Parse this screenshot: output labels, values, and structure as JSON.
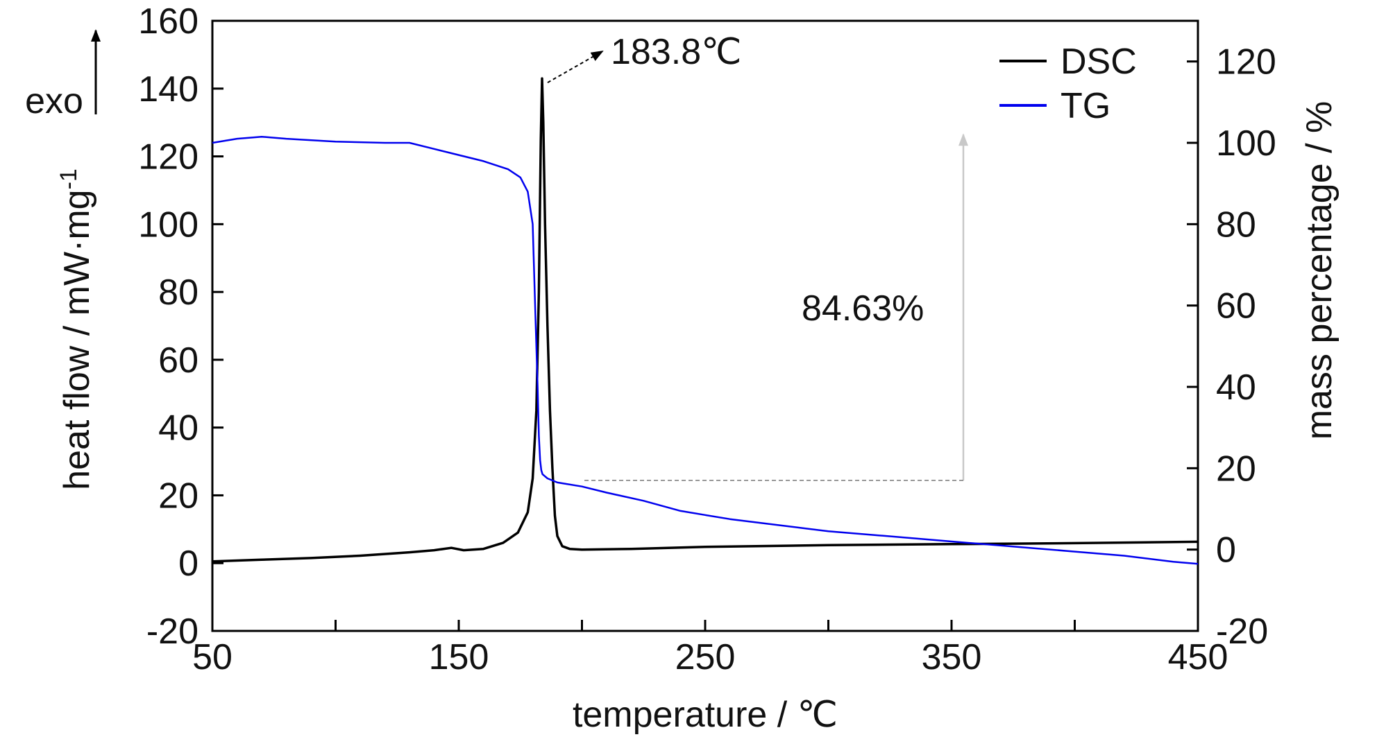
{
  "chart_data": {
    "type": "line",
    "title": "",
    "xlabel": "temperature / ℃",
    "ylabel_left": "heat flow / mW·mg",
    "ylabel_left_superscript": "-1",
    "ylabel_right": "mass percentage / %",
    "exo_label": "exo",
    "xlim": [
      50,
      450
    ],
    "ylim_left": [
      -20,
      160
    ],
    "ylim_right": [
      -20,
      130
    ],
    "x_ticks": [
      50,
      150,
      250,
      350,
      450
    ],
    "x_tick_labels": [
      "50",
      "150",
      "250",
      "350",
      "450"
    ],
    "x_minor_ticks": [
      100,
      200,
      300,
      400
    ],
    "y_left_ticks": [
      -20,
      0,
      20,
      40,
      60,
      80,
      100,
      120,
      140,
      160
    ],
    "y_left_tick_labels": [
      "-20",
      "0",
      "20",
      "40",
      "60",
      "80",
      "100",
      "120",
      "140",
      "160"
    ],
    "y_right_ticks": [
      -20,
      0,
      20,
      40,
      60,
      80,
      100,
      120
    ],
    "y_right_tick_labels": [
      "-20",
      "0",
      "20",
      "40",
      "60",
      "80",
      "100",
      "120"
    ],
    "grid": false,
    "legend_position": "top-right",
    "series": [
      {
        "name": "DSC",
        "axis": "left",
        "color": "#000000",
        "x": [
          50,
          70,
          90,
          110,
          130,
          140,
          147,
          152,
          160,
          168,
          174,
          178,
          180,
          181.5,
          182.5,
          183.3,
          183.8,
          184.3,
          185,
          186,
          187,
          188,
          189,
          190,
          192,
          195,
          200,
          220,
          250,
          300,
          350,
          400,
          450
        ],
        "y": [
          0.5,
          1,
          1.5,
          2.2,
          3.2,
          3.8,
          4.5,
          3.8,
          4.2,
          6,
          9,
          15,
          25,
          45,
          80,
          125,
          143,
          130,
          100,
          70,
          45,
          28,
          14,
          8,
          5,
          4.2,
          4,
          4.2,
          4.8,
          5.3,
          5.6,
          5.9,
          6.3
        ]
      },
      {
        "name": "TG",
        "axis": "right",
        "color": "#0000ee",
        "x": [
          50,
          60,
          70,
          80,
          100,
          120,
          130,
          140,
          150,
          160,
          170,
          175,
          178,
          180,
          181,
          182,
          182.5,
          183,
          183.5,
          184,
          186,
          190,
          200,
          210,
          225,
          240,
          250,
          260,
          280,
          300,
          320,
          340,
          360,
          380,
          400,
          420,
          440,
          450
        ],
        "y": [
          100,
          101,
          101.5,
          101,
          100.3,
          100,
          100,
          98.5,
          97,
          95.5,
          93.5,
          91.5,
          88,
          80,
          60,
          40,
          28,
          22,
          19.5,
          18.5,
          17.5,
          16.5,
          15.5,
          14,
          12,
          9.5,
          8.5,
          7.5,
          6,
          4.5,
          3.5,
          2.5,
          1.5,
          0.5,
          -0.5,
          -1.5,
          -3,
          -3.5
        ]
      }
    ],
    "annotations": {
      "peak_label": "183.8℃",
      "peak_x": 183.8,
      "peak_y": 143,
      "mass_loss_label": "84.63%",
      "mass_loss_top": 102,
      "mass_loss_bottom": 17
    }
  }
}
